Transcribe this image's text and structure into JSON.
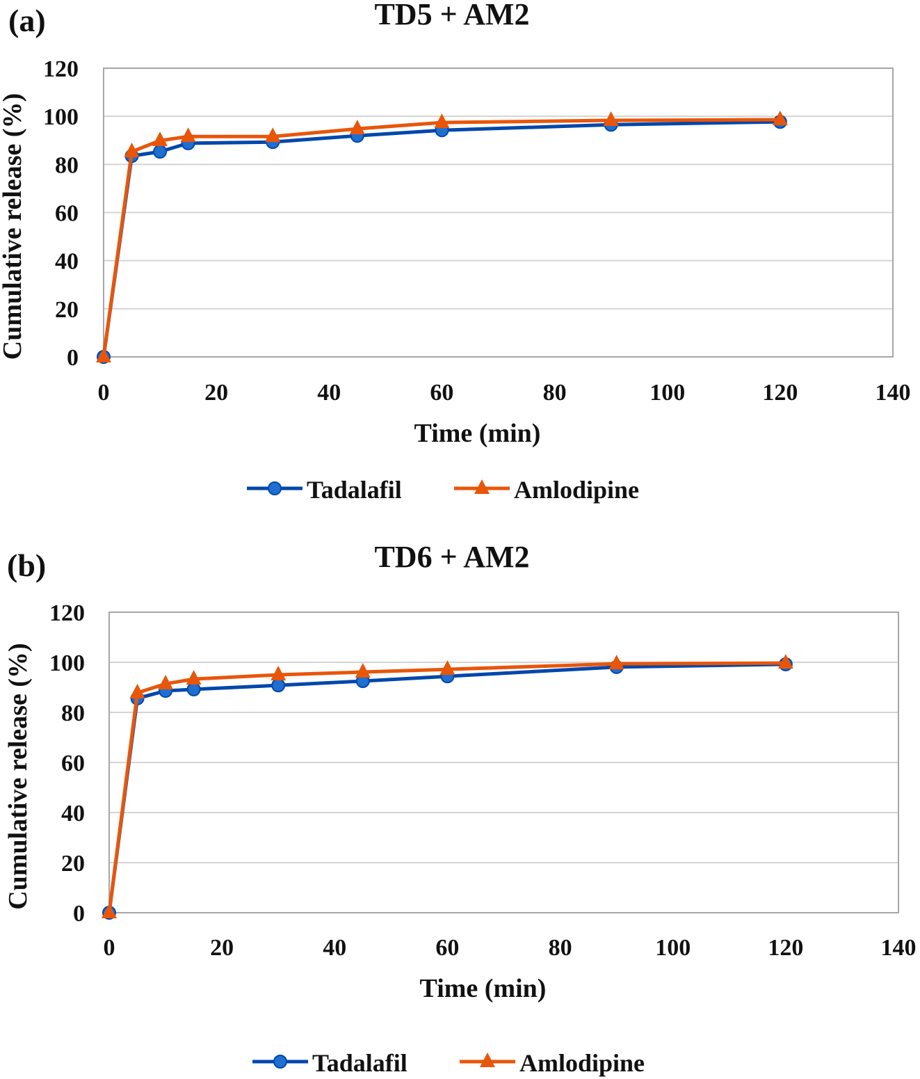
{
  "chart_data": [
    {
      "type": "line",
      "panel_label": "(a)",
      "title": "TD5 + AM2",
      "xlabel": "Time (min)",
      "ylabel": "Cumulative release (%)",
      "xlim": [
        0,
        140
      ],
      "ylim": [
        0,
        120
      ],
      "xticks": [
        0,
        20,
        40,
        60,
        80,
        100,
        120,
        140
      ],
      "yticks": [
        0,
        20,
        40,
        60,
        80,
        100,
        120
      ],
      "grid": true,
      "legend_position": "bottom",
      "x": [
        0,
        5,
        10,
        15,
        30,
        45,
        60,
        90,
        120
      ],
      "series": [
        {
          "name": "Tadalafil",
          "marker": "circle",
          "color": "#0047AB",
          "values": [
            0,
            83.5,
            85.3,
            88.8,
            89.3,
            91.9,
            94.2,
            96.5,
            97.7
          ]
        },
        {
          "name": "Amlodipine",
          "marker": "triangle",
          "color": "#E8560A",
          "values": [
            0,
            85.3,
            89.9,
            91.6,
            91.6,
            94.8,
            97.4,
            98.3,
            98.6
          ]
        }
      ]
    },
    {
      "type": "line",
      "panel_label": "(b)",
      "title": "TD6 + AM2",
      "xlabel": "Time (min)",
      "ylabel": "Cumulative release (%)",
      "xlim": [
        0,
        140
      ],
      "ylim": [
        0,
        120
      ],
      "xticks": [
        0,
        20,
        40,
        60,
        80,
        100,
        120,
        140
      ],
      "yticks": [
        0,
        20,
        40,
        60,
        80,
        100,
        120
      ],
      "grid": true,
      "legend_position": "bottom",
      "x": [
        0,
        5,
        10,
        15,
        30,
        45,
        60,
        90,
        120
      ],
      "series": [
        {
          "name": "Tadalafil",
          "marker": "circle",
          "color": "#0047AB",
          "values": [
            0,
            85.6,
            88.6,
            89.2,
            90.8,
            92.5,
            94.4,
            98.1,
            99.2
          ]
        },
        {
          "name": "Amlodipine",
          "marker": "triangle",
          "color": "#E8560A",
          "values": [
            0,
            87.8,
            91.4,
            93.3,
            95.0,
            96.1,
            97.2,
            99.4,
            99.7
          ]
        }
      ]
    }
  ]
}
